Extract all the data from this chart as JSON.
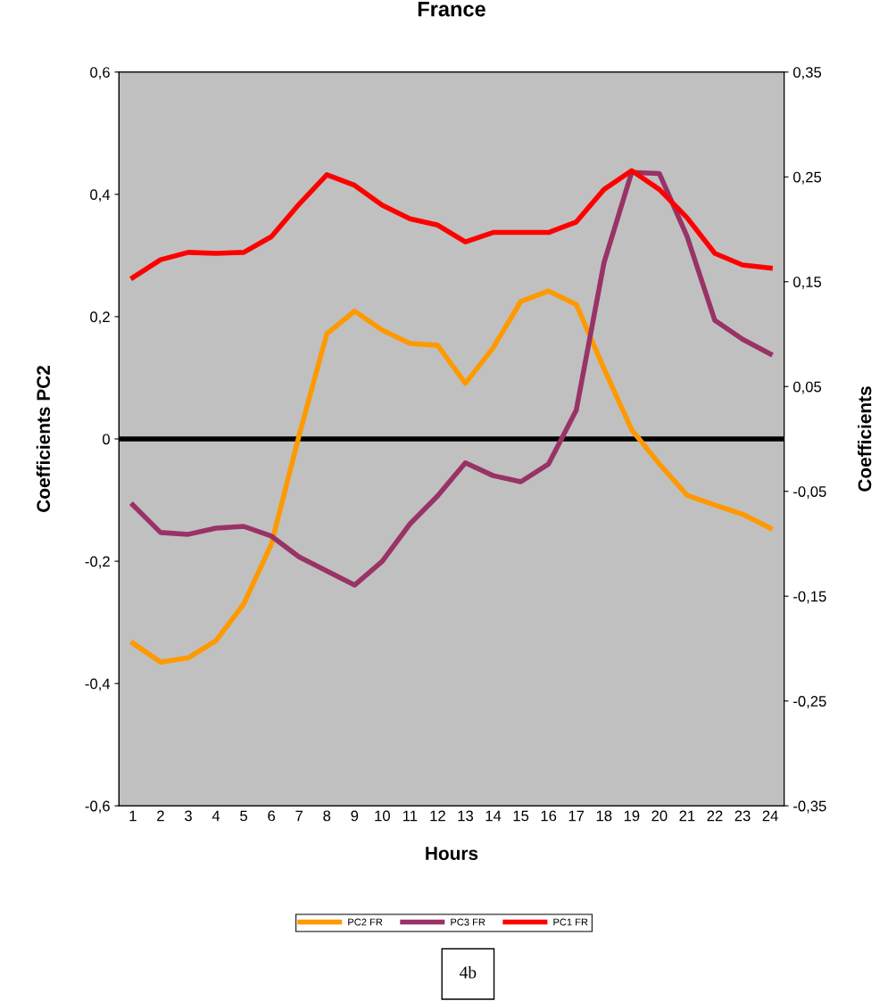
{
  "chart_data": {
    "type": "line",
    "title": "France",
    "xlabel": "Hours",
    "ylabel": "Coefficients PC2",
    "y2label": "Coefficients",
    "categories": [
      "1",
      "2",
      "3",
      "4",
      "5",
      "6",
      "7",
      "8",
      "9",
      "10",
      "11",
      "12",
      "13",
      "14",
      "15",
      "16",
      "17",
      "18",
      "19",
      "20",
      "21",
      "22",
      "23",
      "24"
    ],
    "series": [
      {
        "name": "PC2 FR",
        "color": "#ff9900",
        "values": [
          -0.334,
          -0.365,
          -0.358,
          -0.33,
          -0.27,
          -0.172,
          0.006,
          0.172,
          0.209,
          0.178,
          0.156,
          0.153,
          0.091,
          0.149,
          0.225,
          0.242,
          0.22,
          0.115,
          0.015,
          -0.041,
          -0.092,
          -0.108,
          -0.123,
          -0.146
        ]
      },
      {
        "name": "PC3 FR",
        "color": "#993366",
        "values": [
          -0.108,
          -0.153,
          -0.156,
          -0.146,
          -0.143,
          -0.159,
          -0.193,
          -0.216,
          -0.239,
          -0.2,
          -0.139,
          -0.093,
          -0.039,
          -0.06,
          -0.07,
          -0.041,
          0.047,
          0.288,
          0.436,
          0.434,
          0.331,
          0.194,
          0.163,
          0.139
        ]
      },
      {
        "name": "PC1 FR",
        "color": "#ff0000",
        "axis": "y2",
        "values": [
          0.154,
          0.171,
          0.178,
          0.177,
          0.178,
          0.193,
          0.224,
          0.252,
          0.242,
          0.223,
          0.21,
          0.204,
          0.188,
          0.197,
          0.197,
          0.197,
          0.207,
          0.238,
          0.256,
          0.238,
          0.211,
          0.177,
          0.166,
          0.163
        ]
      }
    ],
    "ylim": [
      -0.6,
      0.6
    ],
    "yticks": [
      {
        "value": -0.6,
        "label": "-0,6"
      },
      {
        "value": -0.4,
        "label": "-0,4"
      },
      {
        "value": -0.2,
        "label": "-0,2"
      },
      0,
      {
        "value": 0.2,
        "label": "0,2"
      },
      {
        "value": 0.4,
        "label": "0,4"
      },
      {
        "value": 0.6,
        "label": "0,6"
      }
    ],
    "y2lim": [
      -0.35,
      0.35
    ],
    "y2ticks": [
      {
        "value": -0.35,
        "label": "-0,35"
      },
      {
        "value": -0.25,
        "label": "-0,25"
      },
      {
        "value": -0.15,
        "label": "-0,15"
      },
      {
        "value": -0.05,
        "label": "-0,05"
      },
      {
        "value": 0.05,
        "label": "0,05"
      },
      {
        "value": 0.15,
        "label": "0,15"
      },
      {
        "value": 0.25,
        "label": "0,25"
      },
      {
        "value": 0.35,
        "label": "0,35"
      }
    ],
    "ref_lines": [
      {
        "axis": "y",
        "value": 0,
        "color": "#000000",
        "line_style": "solid"
      }
    ],
    "annotations": [
      "4b"
    ],
    "legend": "bottom",
    "grid": false,
    "marker": "none",
    "line_style": "solid"
  }
}
